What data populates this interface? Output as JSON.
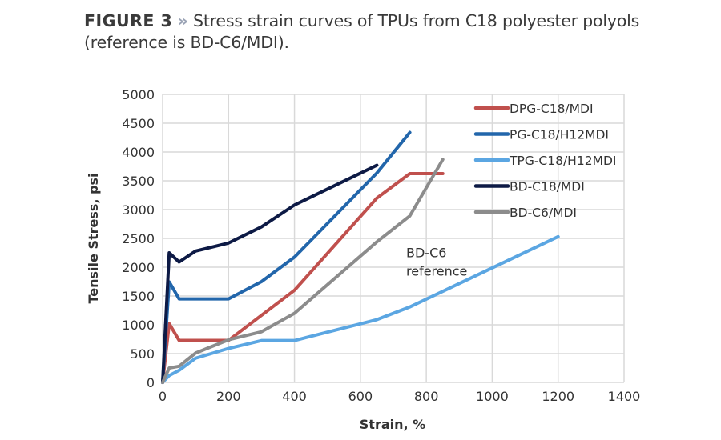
{
  "figure": {
    "label": "FIGURE 3",
    "separator": "»",
    "caption": "Stress strain curves of TPUs from C18 polyester polyols (reference is BD-C6/MDI)."
  },
  "chart_data": {
    "type": "line",
    "title": "",
    "xlabel": "Strain, %",
    "ylabel": "Tensile Stress, psi",
    "xlim": [
      0,
      1400
    ],
    "ylim": [
      0,
      5000
    ],
    "xticks": [
      0,
      200,
      400,
      600,
      800,
      1000,
      1200,
      1400
    ],
    "yticks": [
      0,
      500,
      1000,
      1500,
      2000,
      2500,
      3000,
      3500,
      4000,
      4500,
      5000
    ],
    "grid": true,
    "legend_position": "top-right",
    "annotation": {
      "text_line1": "BD-C6",
      "text_line2": "reference",
      "x": 840,
      "y": 2200
    },
    "series": [
      {
        "name": "DPG-C18/MDI",
        "color": "#c0504d",
        "points": [
          [
            0,
            0
          ],
          [
            20,
            1020
          ],
          [
            50,
            730
          ],
          [
            200,
            730
          ],
          [
            400,
            1600
          ],
          [
            650,
            3200
          ],
          [
            750,
            3625
          ],
          [
            850,
            3625
          ]
        ]
      },
      {
        "name": "PG-C18/H12MDI",
        "color": "#2266ab",
        "points": [
          [
            0,
            0
          ],
          [
            20,
            1745
          ],
          [
            50,
            1450
          ],
          [
            200,
            1450
          ],
          [
            300,
            1750
          ],
          [
            400,
            2175
          ],
          [
            650,
            3635
          ],
          [
            750,
            4340
          ]
        ]
      },
      {
        "name": "TPG-C18/H12MDI",
        "color": "#5ba6e2",
        "points": [
          [
            0,
            0
          ],
          [
            20,
            120
          ],
          [
            50,
            210
          ],
          [
            100,
            420
          ],
          [
            200,
            590
          ],
          [
            300,
            727
          ],
          [
            400,
            727
          ],
          [
            650,
            1090
          ],
          [
            750,
            1310
          ],
          [
            1200,
            2530
          ]
        ]
      },
      {
        "name": "BD-C18/MDI",
        "color": "#0d1a45",
        "points": [
          [
            0,
            0
          ],
          [
            20,
            2250
          ],
          [
            50,
            2090
          ],
          [
            100,
            2280
          ],
          [
            200,
            2420
          ],
          [
            300,
            2700
          ],
          [
            400,
            3080
          ],
          [
            650,
            3770
          ]
        ]
      },
      {
        "name": "BD-C6/MDI",
        "color": "#8c8c8c",
        "points": [
          [
            0,
            0
          ],
          [
            20,
            250
          ],
          [
            50,
            280
          ],
          [
            100,
            510
          ],
          [
            200,
            740
          ],
          [
            300,
            880
          ],
          [
            400,
            1200
          ],
          [
            650,
            2440
          ],
          [
            750,
            2890
          ],
          [
            850,
            3870
          ]
        ]
      }
    ]
  }
}
